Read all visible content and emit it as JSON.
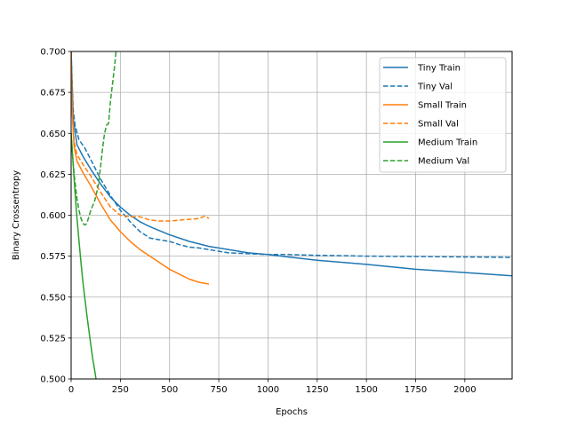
{
  "chart_data": {
    "type": "line",
    "title": "",
    "xlabel": "Epochs",
    "ylabel": "Binary Crossentropy",
    "xlim": [
      0,
      2240
    ],
    "ylim": [
      0.5,
      0.7
    ],
    "xticks": [
      0,
      250,
      500,
      750,
      1000,
      1250,
      1500,
      1750,
      2000
    ],
    "xtick_labels": [
      "0",
      "250",
      "500",
      "750",
      "1000",
      "1250",
      "1500",
      "1750",
      "2000"
    ],
    "yticks": [
      0.5,
      0.525,
      0.55,
      0.575,
      0.6,
      0.625,
      0.65,
      0.675,
      0.7
    ],
    "ytick_labels": [
      "0.500",
      "0.525",
      "0.550",
      "0.575",
      "0.600",
      "0.625",
      "0.650",
      "0.675",
      "0.700"
    ],
    "grid": true,
    "legend_position": "top-right",
    "series": [
      {
        "name": "Tiny Train",
        "color": "#1f77b4",
        "style": "solid",
        "x": [
          0,
          10,
          30,
          60,
          100,
          150,
          200,
          250,
          300,
          350,
          400,
          500,
          600,
          700,
          800,
          900,
          1000,
          1100,
          1250,
          1500,
          1750,
          2000,
          2240
        ],
        "y": [
          0.7,
          0.66,
          0.643,
          0.636,
          0.628,
          0.619,
          0.611,
          0.605,
          0.6,
          0.596,
          0.593,
          0.588,
          0.584,
          0.581,
          0.579,
          0.577,
          0.576,
          0.5745,
          0.5725,
          0.57,
          0.567,
          0.565,
          0.563
        ]
      },
      {
        "name": "Tiny Val",
        "color": "#1f77b4",
        "style": "dashed",
        "x": [
          0,
          10,
          20,
          40,
          70,
          100,
          150,
          200,
          250,
          300,
          350,
          400,
          450,
          500,
          550,
          600,
          650,
          700,
          750,
          800,
          900,
          1000,
          1100,
          1250,
          1500,
          1750,
          2000,
          2240
        ],
        "y": [
          0.7,
          0.665,
          0.655,
          0.646,
          0.641,
          0.634,
          0.622,
          0.612,
          0.603,
          0.596,
          0.59,
          0.586,
          0.585,
          0.584,
          0.582,
          0.5805,
          0.58,
          0.579,
          0.578,
          0.577,
          0.5765,
          0.576,
          0.576,
          0.5755,
          0.575,
          0.5748,
          0.5745,
          0.5742
        ]
      },
      {
        "name": "Small Train",
        "color": "#ff7f0e",
        "style": "solid",
        "x": [
          0,
          5,
          15,
          30,
          60,
          100,
          150,
          200,
          250,
          300,
          350,
          400,
          450,
          500,
          550,
          600,
          650,
          700
        ],
        "y": [
          0.7,
          0.665,
          0.642,
          0.633,
          0.626,
          0.618,
          0.607,
          0.597,
          0.59,
          0.584,
          0.579,
          0.575,
          0.571,
          0.567,
          0.564,
          0.561,
          0.559,
          0.558
        ]
      },
      {
        "name": "Small Val",
        "color": "#ff7f0e",
        "style": "dashed",
        "x": [
          0,
          5,
          15,
          30,
          60,
          100,
          150,
          200,
          250,
          300,
          350,
          400,
          450,
          500,
          550,
          600,
          650,
          680,
          700
        ],
        "y": [
          0.7,
          0.665,
          0.645,
          0.637,
          0.631,
          0.624,
          0.614,
          0.605,
          0.6,
          0.599,
          0.599,
          0.597,
          0.5965,
          0.5965,
          0.597,
          0.5975,
          0.598,
          0.5995,
          0.598
        ]
      },
      {
        "name": "Medium Train",
        "color": "#2ca02c",
        "style": "solid",
        "x": [
          0,
          10,
          20,
          30,
          40,
          50,
          60,
          70,
          80,
          90,
          100,
          110,
          120,
          130
        ],
        "y": [
          0.65,
          0.632,
          0.614,
          0.598,
          0.584,
          0.571,
          0.559,
          0.549,
          0.539,
          0.53,
          0.521,
          0.512,
          0.505,
          0.497
        ]
      },
      {
        "name": "Medium Val",
        "color": "#2ca02c",
        "style": "dashed",
        "x": [
          0,
          10,
          20,
          30,
          40,
          50,
          60,
          70,
          80,
          90,
          100,
          110,
          120,
          130,
          140,
          150,
          160,
          170,
          180,
          190,
          200,
          210,
          220,
          230
        ],
        "y": [
          0.65,
          0.632,
          0.62,
          0.61,
          0.603,
          0.598,
          0.595,
          0.594,
          0.595,
          0.599,
          0.603,
          0.606,
          0.609,
          0.614,
          0.62,
          0.63,
          0.641,
          0.65,
          0.655,
          0.656,
          0.67,
          0.68,
          0.69,
          0.702
        ]
      }
    ]
  }
}
